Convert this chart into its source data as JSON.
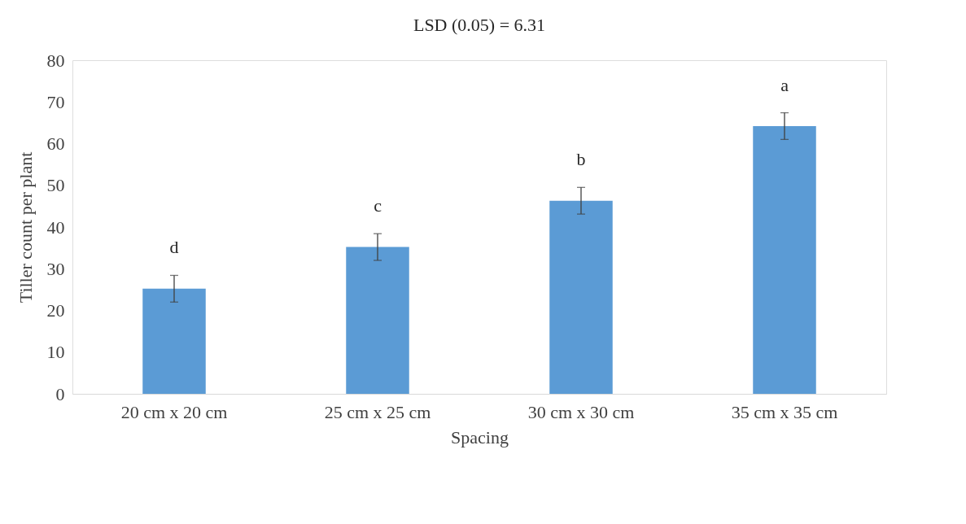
{
  "chart_data": {
    "type": "bar",
    "title": "LSD (0.05) = 6.31",
    "xlabel": "Spacing",
    "ylabel": "Tiller count per plant",
    "categories": [
      "20 cm x 20 cm",
      "25 cm x 25 cm",
      "30 cm x 30 cm",
      "35 cm x 35 cm"
    ],
    "values": [
      25.2,
      35.2,
      46.3,
      64.2
    ],
    "errors": [
      3.2,
      3.2,
      3.2,
      3.2
    ],
    "color": "#5b9bd5",
    "ylim": [
      0,
      80
    ],
    "yticks": [
      0,
      10,
      20,
      30,
      40,
      50,
      60,
      70,
      80
    ],
    "grid": false,
    "annotations": [
      "d",
      "c",
      "b",
      "a"
    ]
  }
}
